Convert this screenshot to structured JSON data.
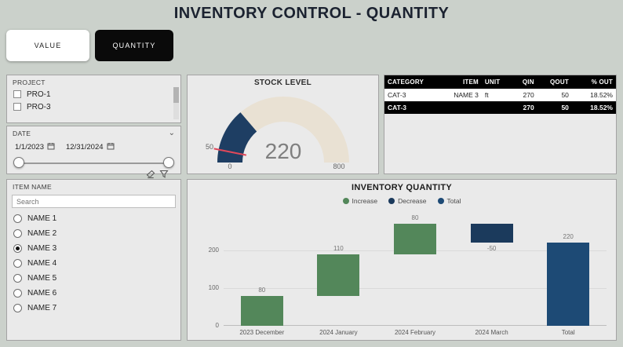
{
  "page_title": "INVENTORY CONTROL - QUANTITY",
  "toolbar": {
    "value_button": "VALUE",
    "quantity_button": "QUANTITY"
  },
  "filters": {
    "project": {
      "label": "PROJECT",
      "options": [
        "PRO-1",
        "PRO-3"
      ],
      "checked": []
    },
    "date": {
      "label": "DATE",
      "start": "1/1/2023",
      "end": "12/31/2024"
    },
    "item": {
      "label": "ITEM NAME",
      "search_placeholder": "Search",
      "options": [
        "NAME 1",
        "NAME 2",
        "NAME 3",
        "NAME 4",
        "NAME 5",
        "NAME 6",
        "NAME 7"
      ],
      "selected": "NAME 3"
    }
  },
  "gauge": {
    "title": "STOCK LEVEL",
    "min": 0,
    "max": 800,
    "value": 220,
    "target": 50,
    "value_color": "#1e3e63",
    "track_color": "#e9e1d3",
    "target_color": "#e0485a",
    "number_color": "#7f7f7f"
  },
  "table": {
    "headers": [
      "CATEGORY",
      "ITEM",
      "UNIT",
      "QIN",
      "QOUT",
      "% OUT"
    ],
    "rows": [
      [
        "CAT-3",
        "NAME 3",
        "ft",
        "270",
        "50",
        "18.52%"
      ]
    ],
    "total_row": [
      "CAT-3",
      "",
      "",
      "270",
      "50",
      "18.52%"
    ]
  },
  "chart_data": {
    "type": "waterfall",
    "title": "INVENTORY QUANTITY",
    "categories": [
      "2023 December",
      "2024 January",
      "2024 February",
      "2024 March"
    ],
    "values": [
      80,
      110,
      80,
      -50
    ],
    "total_label": "Total",
    "total": 220,
    "ylim": [
      0,
      300
    ],
    "yticks": [
      0,
      100,
      200
    ],
    "grid": true,
    "legend_position": "top-center",
    "increase_color": "#53875a",
    "decrease_color": "#1b3a5c",
    "total_color": "#1d4a75",
    "legend": [
      {
        "label": "Increase",
        "color": "#53875a"
      },
      {
        "label": "Decrease",
        "color": "#1b3a5c"
      },
      {
        "label": "Total",
        "color": "#1d4a75"
      }
    ]
  }
}
